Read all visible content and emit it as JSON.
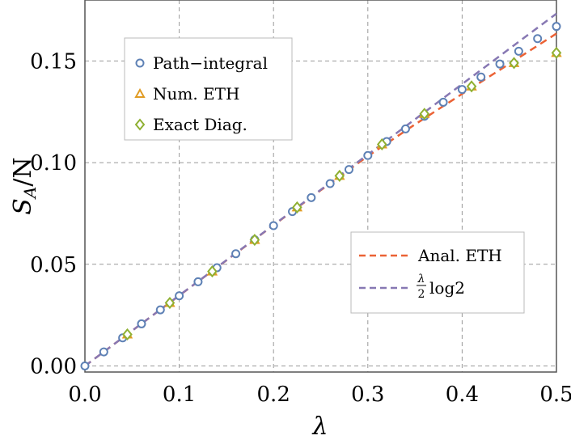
{
  "chart_data": {
    "type": "scatter",
    "xlabel": "λ",
    "ylabel": "S_A/N",
    "xlim": [
      0,
      0.5
    ],
    "ylim": [
      -0.003,
      0.18
    ],
    "x_ticks": [
      "0.0",
      "0.1",
      "0.2",
      "0.3",
      "0.4",
      "0.5"
    ],
    "y_ticks": [
      "0.00",
      "0.05",
      "0.10",
      "0.15"
    ],
    "grid": true,
    "series": [
      {
        "name": "Path−integral",
        "kind": "points",
        "marker": "circle",
        "color": "#5e81b5",
        "x": [
          0.0,
          0.02,
          0.04,
          0.06,
          0.08,
          0.1,
          0.12,
          0.14,
          0.16,
          0.18,
          0.2,
          0.22,
          0.24,
          0.26,
          0.28,
          0.3,
          0.32,
          0.34,
          0.36,
          0.38,
          0.4,
          0.42,
          0.44,
          0.46,
          0.48,
          0.5
        ],
        "y": [
          0.0,
          0.0069,
          0.0138,
          0.0207,
          0.0276,
          0.0345,
          0.0414,
          0.0483,
          0.0552,
          0.0621,
          0.069,
          0.0759,
          0.0828,
          0.0897,
          0.0966,
          0.1035,
          0.1104,
          0.1166,
          0.1228,
          0.1297,
          0.136,
          0.1421,
          0.1485,
          0.1548,
          0.161,
          0.167
        ]
      },
      {
        "name": "Num. ETH",
        "kind": "points",
        "marker": "triangle",
        "color": "#e19c24",
        "x": [
          0.045,
          0.09,
          0.135,
          0.18,
          0.225,
          0.27,
          0.315,
          0.36,
          0.41,
          0.455,
          0.5
        ],
        "y": [
          0.0155,
          0.031,
          0.0465,
          0.062,
          0.078,
          0.0935,
          0.109,
          0.124,
          0.1375,
          0.149,
          0.154
        ]
      },
      {
        "name": "Exact Diag.",
        "kind": "points",
        "marker": "diamond",
        "color": "#8fb032",
        "x": [
          0.045,
          0.09,
          0.135,
          0.18,
          0.225,
          0.27,
          0.315,
          0.36,
          0.41,
          0.455,
          0.5
        ],
        "y": [
          0.0155,
          0.031,
          0.0465,
          0.062,
          0.078,
          0.0935,
          0.109,
          0.124,
          0.1375,
          0.149,
          0.154
        ]
      },
      {
        "name": "Anal. ETH",
        "kind": "line",
        "dash": true,
        "color": "#eb6235",
        "x": [
          0.0,
          0.05,
          0.1,
          0.15,
          0.2,
          0.25,
          0.3,
          0.35,
          0.4,
          0.45,
          0.5
        ],
        "y": [
          0.0,
          0.0173,
          0.0346,
          0.0519,
          0.0692,
          0.0864,
          0.1032,
          0.1188,
          0.1338,
          0.1486,
          0.1635
        ]
      },
      {
        "name": "λ/2 log2",
        "kind": "line",
        "dash": true,
        "color": "#8778b3",
        "x": [
          0.0,
          0.5
        ],
        "y": [
          0.0,
          0.1733
        ]
      }
    ],
    "legends": [
      {
        "placement": "top-left",
        "entries": [
          "Path−integral",
          "Num. ETH",
          "Exact Diag."
        ]
      },
      {
        "placement": "bottom-right",
        "entries": [
          "Anal. ETH",
          "λ/2 log2"
        ]
      }
    ]
  },
  "legend_labels": {
    "path_integral": "Path−integral",
    "num_eth": "Num. ETH",
    "exact_diag": "Exact Diag.",
    "anal_eth": "Anal. ETH",
    "lambda_frac_num": "λ",
    "lambda_frac_den": "2",
    "log2": "log2"
  },
  "axis_labels": {
    "x": "λ",
    "y_main": "S",
    "y_sub": "A",
    "y_rest": "/N"
  },
  "colors": {
    "path_integral": "#5e81b5",
    "num_eth": "#e19c24",
    "exact_diag": "#8fb032",
    "anal_eth": "#eb6235",
    "lambda_log2": "#8778b3",
    "grid": "#999999"
  }
}
